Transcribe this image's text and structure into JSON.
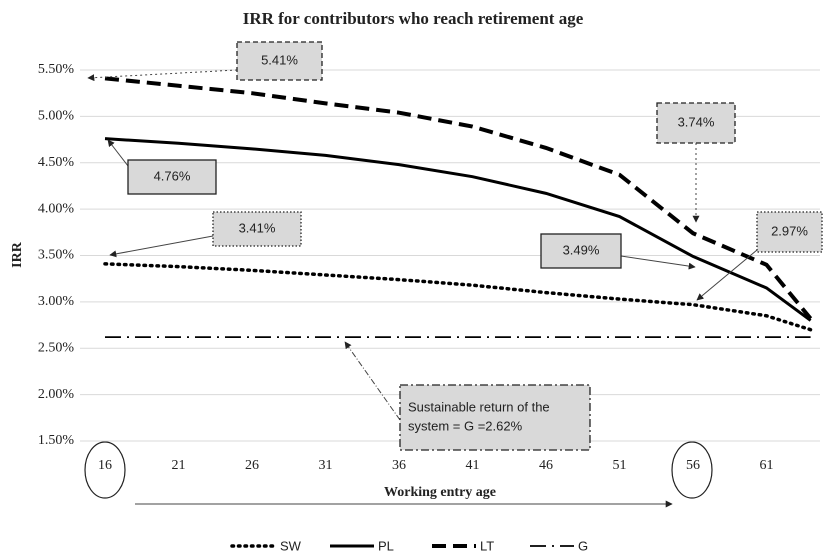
{
  "chart_data": {
    "type": "line",
    "title": "IRR  for contributors who reach retirement age",
    "x_label": "Working entry age",
    "y_label": "IRR",
    "x": [
      16,
      21,
      26,
      31,
      36,
      41,
      46,
      51,
      56,
      61,
      64
    ],
    "xlim": [
      14.3,
      64.6
    ],
    "xticks": [
      16,
      21,
      26,
      31,
      36,
      41,
      46,
      51,
      56,
      61
    ],
    "ylim": [
      1.5,
      5.5
    ],
    "yticks": [
      {
        "value": 1.5,
        "label": "1.50%"
      },
      {
        "value": 2.0,
        "label": "2.00%"
      },
      {
        "value": 2.5,
        "label": "2.50%"
      },
      {
        "value": 3.0,
        "label": "3.00%"
      },
      {
        "value": 3.5,
        "label": "3.50%"
      },
      {
        "value": 4.0,
        "label": "4.00%"
      },
      {
        "value": 4.5,
        "label": "4.50%"
      },
      {
        "value": 5.0,
        "label": "5.00%"
      },
      {
        "value": 5.5,
        "label": "5.50%"
      }
    ],
    "grid": true,
    "legend": "bottom",
    "series": [
      {
        "name": "SW",
        "color": "#000000",
        "dash": "dotted",
        "values": [
          3.41,
          3.38,
          3.34,
          3.29,
          3.24,
          3.18,
          3.1,
          3.03,
          2.97,
          2.85,
          2.7
        ]
      },
      {
        "name": "PL",
        "color": "#000000",
        "dash": "solid",
        "values": [
          4.76,
          4.71,
          4.65,
          4.58,
          4.48,
          4.35,
          4.17,
          3.92,
          3.49,
          3.15,
          2.8
        ]
      },
      {
        "name": "LT",
        "color": "#000000",
        "dash": "dashed",
        "values": [
          5.41,
          5.33,
          5.25,
          5.14,
          5.04,
          4.89,
          4.66,
          4.37,
          3.74,
          3.4,
          2.82
        ]
      },
      {
        "name": "G",
        "color": "#000000",
        "dash": "dashdot",
        "values": [
          2.62,
          2.62,
          2.62,
          2.62,
          2.62,
          2.62,
          2.62,
          2.62,
          2.62,
          2.62,
          2.62
        ]
      }
    ],
    "annotations": [
      {
        "lines": [
          "5.41%"
        ]
      },
      {
        "lines": [
          "4.76%"
        ]
      },
      {
        "lines": [
          "3.41%"
        ]
      },
      {
        "lines": [
          "3.74%"
        ]
      },
      {
        "lines": [
          "3.49%"
        ]
      },
      {
        "lines": [
          "2.97%"
        ]
      },
      {
        "lines": [
          "Sustainable return of the",
          "system = G =2.62%"
        ]
      }
    ]
  }
}
